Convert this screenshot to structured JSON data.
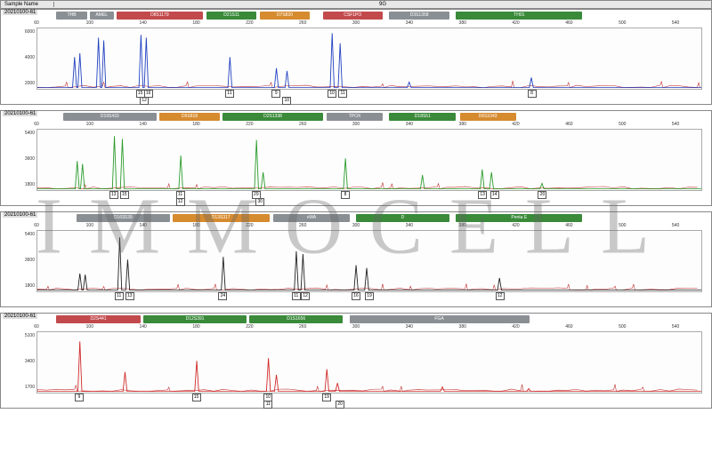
{
  "watermark": "IMMOCELL",
  "header": {
    "left_label": "Sample Name",
    "right_label": "9G"
  },
  "x_axis": {
    "min": 60,
    "max": 560,
    "ticks": [
      60,
      100,
      140,
      180,
      220,
      260,
      300,
      340,
      380,
      420,
      460,
      500,
      540
    ]
  },
  "locus_colors": {
    "gray": "#8a8f94",
    "red": "#c24a4c",
    "green": "#3a8a3a",
    "orange": "#d68b2f"
  },
  "trace_bg": "#fdfdfd",
  "noise_color": "#c03030",
  "panels": [
    {
      "id": "20210100-61",
      "trace_color": "#2040c0",
      "y_ticks": [
        2000,
        4000,
        6000
      ],
      "loci": [
        {
          "label": "THB",
          "color": "gray",
          "from": 75,
          "to": 98
        },
        {
          "label": "AMEL",
          "color": "gray",
          "from": 100,
          "to": 118
        },
        {
          "label": "D8S1179",
          "color": "red",
          "from": 120,
          "to": 185
        },
        {
          "label": "D21S11",
          "color": "green",
          "from": 188,
          "to": 225
        },
        {
          "label": "D7S820",
          "color": "orange",
          "from": 228,
          "to": 265
        },
        {
          "label": "CSF1PO",
          "color": "red",
          "from": 275,
          "to": 320
        },
        {
          "label": "D3S1358",
          "color": "gray",
          "from": 325,
          "to": 370
        },
        {
          "label": "TH01",
          "color": "green",
          "from": 375,
          "to": 470
        }
      ],
      "peaks": [
        {
          "x": 88,
          "h": 0.55
        },
        {
          "x": 92,
          "h": 0.62
        },
        {
          "x": 106,
          "h": 0.9
        },
        {
          "x": 110,
          "h": 0.85
        },
        {
          "x": 138,
          "h": 0.95
        },
        {
          "x": 142,
          "h": 0.9
        },
        {
          "x": 205,
          "h": 0.55
        },
        {
          "x": 240,
          "h": 0.35
        },
        {
          "x": 248,
          "h": 0.3
        },
        {
          "x": 282,
          "h": 0.98
        },
        {
          "x": 288,
          "h": 0.8
        },
        {
          "x": 340,
          "h": 0.1
        },
        {
          "x": 432,
          "h": 0.18
        }
      ],
      "calls": [
        {
          "x": 138,
          "v": "15"
        },
        {
          "x": 144,
          "v": "16"
        },
        {
          "x": 141,
          "v": "12",
          "r": 2
        },
        {
          "x": 205,
          "v": "11"
        },
        {
          "x": 240,
          "v": "9"
        },
        {
          "x": 248,
          "v": "10",
          "r": 2
        },
        {
          "x": 282,
          "v": "10"
        },
        {
          "x": 290,
          "v": "11"
        },
        {
          "x": 432,
          "v": "8"
        }
      ]
    },
    {
      "id": "20210100-61",
      "trace_color": "#2a9a2a",
      "y_ticks": [
        1800,
        3600,
        5400
      ],
      "loci": [
        {
          "label": "D19S433",
          "color": "gray",
          "from": 80,
          "to": 150
        },
        {
          "label": "D5S818",
          "color": "orange",
          "from": 152,
          "to": 198
        },
        {
          "label": "D2S1338",
          "color": "green",
          "from": 200,
          "to": 275
        },
        {
          "label": "TPOX",
          "color": "gray",
          "from": 278,
          "to": 320
        },
        {
          "label": "D18S51",
          "color": "green",
          "from": 325,
          "to": 375
        },
        {
          "label": "D6S1043",
          "color": "orange",
          "from": 378,
          "to": 420
        }
      ],
      "peaks": [
        {
          "x": 90,
          "h": 0.5
        },
        {
          "x": 94,
          "h": 0.45
        },
        {
          "x": 118,
          "h": 0.95
        },
        {
          "x": 124,
          "h": 0.9
        },
        {
          "x": 168,
          "h": 0.6
        },
        {
          "x": 225,
          "h": 0.88
        },
        {
          "x": 230,
          "h": 0.3
        },
        {
          "x": 292,
          "h": 0.55
        },
        {
          "x": 350,
          "h": 0.25
        },
        {
          "x": 395,
          "h": 0.35
        },
        {
          "x": 402,
          "h": 0.3
        },
        {
          "x": 440,
          "h": 0.1
        }
      ],
      "calls": [
        {
          "x": 118,
          "v": "13"
        },
        {
          "x": 126,
          "v": "15"
        },
        {
          "x": 168,
          "v": "11"
        },
        {
          "x": 168,
          "v": "12",
          "r": 2
        },
        {
          "x": 225,
          "v": "29"
        },
        {
          "x": 228,
          "v": "30",
          "r": 2
        },
        {
          "x": 292,
          "v": "8"
        },
        {
          "x": 395,
          "v": "13"
        },
        {
          "x": 404,
          "v": "14"
        },
        {
          "x": 440,
          "v": "20"
        }
      ]
    },
    {
      "id": "20210100-61",
      "trace_color": "#202020",
      "y_ticks": [
        1800,
        3600,
        5400
      ],
      "loci": [
        {
          "label": "D16S539",
          "color": "gray",
          "from": 90,
          "to": 160
        },
        {
          "label": "D13S317",
          "color": "orange",
          "from": 162,
          "to": 235
        },
        {
          "label": "vWA",
          "color": "gray",
          "from": 238,
          "to": 295
        },
        {
          "label": "D",
          "color": "green",
          "from": 300,
          "to": 370
        },
        {
          "label": "Penta E",
          "color": "green",
          "from": 375,
          "to": 470
        }
      ],
      "peaks": [
        {
          "x": 92,
          "h": 0.3
        },
        {
          "x": 96,
          "h": 0.28
        },
        {
          "x": 122,
          "h": 0.95
        },
        {
          "x": 128,
          "h": 0.55
        },
        {
          "x": 200,
          "h": 0.6
        },
        {
          "x": 255,
          "h": 0.7
        },
        {
          "x": 260,
          "h": 0.65
        },
        {
          "x": 300,
          "h": 0.45
        },
        {
          "x": 308,
          "h": 0.4
        },
        {
          "x": 408,
          "h": 0.22
        }
      ],
      "calls": [
        {
          "x": 122,
          "v": "11"
        },
        {
          "x": 130,
          "v": "13"
        },
        {
          "x": 200,
          "v": "24"
        },
        {
          "x": 255,
          "v": "11"
        },
        {
          "x": 262,
          "v": "12"
        },
        {
          "x": 300,
          "v": "16"
        },
        {
          "x": 310,
          "v": "19"
        },
        {
          "x": 408,
          "v": "12"
        }
      ]
    },
    {
      "id": "20210100-61",
      "trace_color": "#d02828",
      "y_ticks": [
        1700,
        3400,
        5100
      ],
      "loci": [
        {
          "label": "D2S441",
          "color": "red",
          "from": 75,
          "to": 138
        },
        {
          "label": "D12S391",
          "color": "green",
          "from": 140,
          "to": 218
        },
        {
          "label": "D1S1656",
          "color": "green",
          "from": 220,
          "to": 290
        },
        {
          "label": "FGA",
          "color": "gray",
          "from": 295,
          "to": 430
        }
      ],
      "peaks": [
        {
          "x": 92,
          "h": 0.9
        },
        {
          "x": 126,
          "h": 0.35
        },
        {
          "x": 180,
          "h": 0.55
        },
        {
          "x": 234,
          "h": 0.6
        },
        {
          "x": 240,
          "h": 0.3
        },
        {
          "x": 278,
          "h": 0.4
        },
        {
          "x": 286,
          "h": 0.15
        },
        {
          "x": 365,
          "h": 0.08
        },
        {
          "x": 430,
          "h": 0.05
        }
      ],
      "calls": [
        {
          "x": 92,
          "v": "9"
        },
        {
          "x": 180,
          "v": "15"
        },
        {
          "x": 234,
          "v": "11",
          "r": 2
        },
        {
          "x": 234,
          "v": "10"
        },
        {
          "x": 278,
          "v": "19"
        },
        {
          "x": 288,
          "v": "20",
          "r": 2
        }
      ]
    }
  ]
}
